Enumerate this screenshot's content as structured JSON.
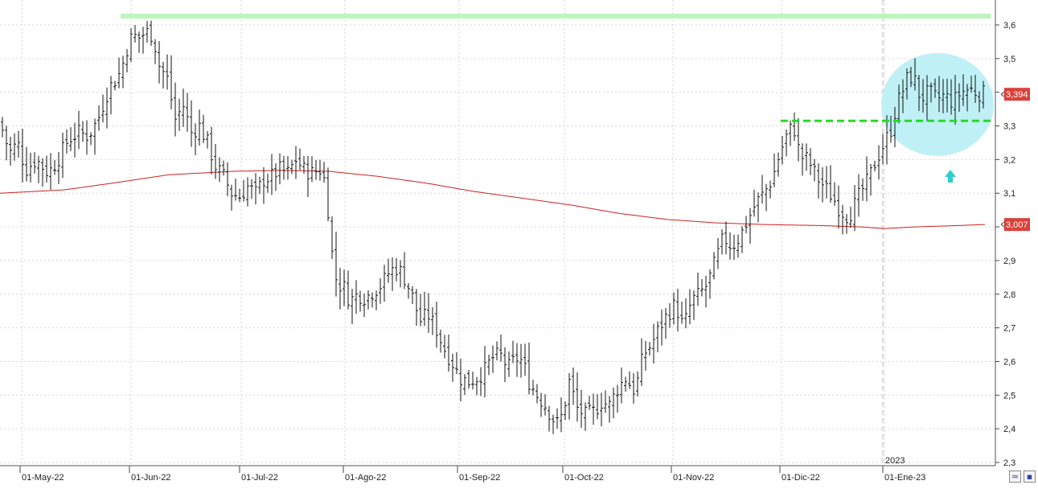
{
  "chart_data": {
    "type": "bar",
    "subtype": "ohlc-price-chart",
    "ylim": [
      2.3,
      3.65
    ],
    "y_ticks": [
      "2,3",
      "2,4",
      "2,5",
      "2,6",
      "2,7",
      "2,8",
      "2,9",
      "3,0",
      "3,1",
      "3,2",
      "3,3",
      "3,4",
      "3,5",
      "3,6"
    ],
    "x_ticks": [
      "01-May-22",
      "01-Jun-22",
      "01-Jul-22",
      "01-Ago-22",
      "01-Sep-22",
      "01-Oct-22",
      "01-Nov-22",
      "01-Dic-22",
      "01-Ene-23"
    ],
    "year_marker": "2023",
    "price_label": "3,394",
    "ma_label": "3,007",
    "price_value": 3.394,
    "ma_value": 3.007,
    "resistance_level": 3.62,
    "breakout_level": 3.315,
    "grid": true,
    "colors": {
      "bars": "#111111",
      "moving_average": "#cc2222",
      "resistance": "#bdf5bd",
      "breakout": "#22dd22",
      "highlight_circle": "#bff0f5",
      "arrow": "#33cccc",
      "label_bg": "#d9413a"
    },
    "price_anchors": [
      [
        0,
        3.31
      ],
      [
        12,
        3.22
      ],
      [
        22,
        3.25
      ],
      [
        32,
        3.17
      ],
      [
        45,
        3.2
      ],
      [
        60,
        3.16
      ],
      [
        72,
        3.2
      ],
      [
        85,
        3.26
      ],
      [
        98,
        3.28
      ],
      [
        110,
        3.27
      ],
      [
        122,
        3.32
      ],
      [
        135,
        3.41
      ],
      [
        150,
        3.46
      ],
      [
        158,
        3.53
      ],
      [
        165,
        3.57
      ],
      [
        172,
        3.56
      ],
      [
        182,
        3.58
      ],
      [
        190,
        3.57
      ],
      [
        198,
        3.48
      ],
      [
        208,
        3.44
      ],
      [
        218,
        3.32
      ],
      [
        228,
        3.36
      ],
      [
        238,
        3.28
      ],
      [
        248,
        3.3
      ],
      [
        258,
        3.25
      ],
      [
        268,
        3.18
      ],
      [
        278,
        3.15
      ],
      [
        288,
        3.1
      ],
      [
        298,
        3.09
      ],
      [
        308,
        3.12
      ],
      [
        318,
        3.1
      ],
      [
        328,
        3.14
      ],
      [
        338,
        3.15
      ],
      [
        348,
        3.17
      ],
      [
        358,
        3.16
      ],
      [
        368,
        3.2
      ],
      [
        378,
        3.17
      ],
      [
        388,
        3.16
      ],
      [
        398,
        3.17
      ],
      [
        405,
        3.13
      ],
      [
        410,
        3.0
      ],
      [
        415,
        2.87
      ],
      [
        420,
        2.83
      ],
      [
        428,
        2.82
      ],
      [
        435,
        2.78
      ],
      [
        445,
        2.8
      ],
      [
        455,
        2.79
      ],
      [
        465,
        2.81
      ],
      [
        475,
        2.83
      ],
      [
        485,
        2.87
      ],
      [
        495,
        2.88
      ],
      [
        505,
        2.84
      ],
      [
        515,
        2.78
      ],
      [
        522,
        2.72
      ],
      [
        532,
        2.74
      ],
      [
        542,
        2.7
      ],
      [
        552,
        2.64
      ],
      [
        562,
        2.6
      ],
      [
        572,
        2.55
      ],
      [
        582,
        2.54
      ],
      [
        592,
        2.55
      ],
      [
        602,
        2.57
      ],
      [
        612,
        2.61
      ],
      [
        622,
        2.62
      ],
      [
        632,
        2.58
      ],
      [
        642,
        2.61
      ],
      [
        650,
        2.6
      ],
      [
        658,
        2.54
      ],
      [
        668,
        2.5
      ],
      [
        678,
        2.47
      ],
      [
        688,
        2.43
      ],
      [
        695,
        2.41
      ],
      [
        702,
        2.47
      ],
      [
        708,
        2.54
      ],
      [
        718,
        2.46
      ],
      [
        728,
        2.44
      ],
      [
        738,
        2.45
      ],
      [
        748,
        2.48
      ],
      [
        758,
        2.47
      ],
      [
        768,
        2.52
      ],
      [
        778,
        2.55
      ],
      [
        790,
        2.51
      ],
      [
        800,
        2.62
      ],
      [
        810,
        2.65
      ],
      [
        820,
        2.7
      ],
      [
        830,
        2.74
      ],
      [
        840,
        2.77
      ],
      [
        850,
        2.7
      ],
      [
        860,
        2.78
      ],
      [
        870,
        2.8
      ],
      [
        880,
        2.83
      ],
      [
        890,
        2.9
      ],
      [
        900,
        2.97
      ],
      [
        910,
        2.94
      ],
      [
        920,
        2.97
      ],
      [
        930,
        3.02
      ],
      [
        940,
        3.07
      ],
      [
        950,
        3.1
      ],
      [
        960,
        3.14
      ],
      [
        970,
        3.22
      ],
      [
        980,
        3.28
      ],
      [
        987,
        3.3
      ],
      [
        995,
        3.21
      ],
      [
        1005,
        3.2
      ],
      [
        1015,
        3.15
      ],
      [
        1025,
        3.12
      ],
      [
        1035,
        3.09
      ],
      [
        1045,
        3.05
      ],
      [
        1055,
        3.03
      ],
      [
        1062,
        3.06
      ],
      [
        1070,
        3.1
      ],
      [
        1080,
        3.14
      ],
      [
        1090,
        3.2
      ],
      [
        1100,
        3.25
      ],
      [
        1108,
        3.29
      ],
      [
        1115,
        3.36
      ],
      [
        1122,
        3.4
      ],
      [
        1130,
        3.45
      ],
      [
        1137,
        3.44
      ],
      [
        1145,
        3.38
      ],
      [
        1155,
        3.4
      ],
      [
        1165,
        3.38
      ],
      [
        1175,
        3.39
      ],
      [
        1185,
        3.37
      ],
      [
        1195,
        3.4
      ],
      [
        1205,
        3.41
      ],
      [
        1215,
        3.4
      ],
      [
        1225,
        3.394
      ]
    ],
    "ma_anchors": [
      [
        0,
        3.1
      ],
      [
        80,
        3.11
      ],
      [
        140,
        3.13
      ],
      [
        210,
        3.155
      ],
      [
        290,
        3.165
      ],
      [
        350,
        3.168
      ],
      [
        410,
        3.165
      ],
      [
        470,
        3.15
      ],
      [
        530,
        3.13
      ],
      [
        590,
        3.105
      ],
      [
        650,
        3.085
      ],
      [
        710,
        3.065
      ],
      [
        770,
        3.04
      ],
      [
        830,
        3.022
      ],
      [
        890,
        3.012
      ],
      [
        950,
        3.007
      ],
      [
        1020,
        3.004
      ],
      [
        1070,
        3.0
      ],
      [
        1100,
        2.995
      ],
      [
        1140,
        3.0
      ],
      [
        1180,
        3.003
      ],
      [
        1225,
        3.007
      ]
    ]
  },
  "ui": {
    "icon_names": [
      "chart-style-icon",
      "save-icon"
    ]
  }
}
